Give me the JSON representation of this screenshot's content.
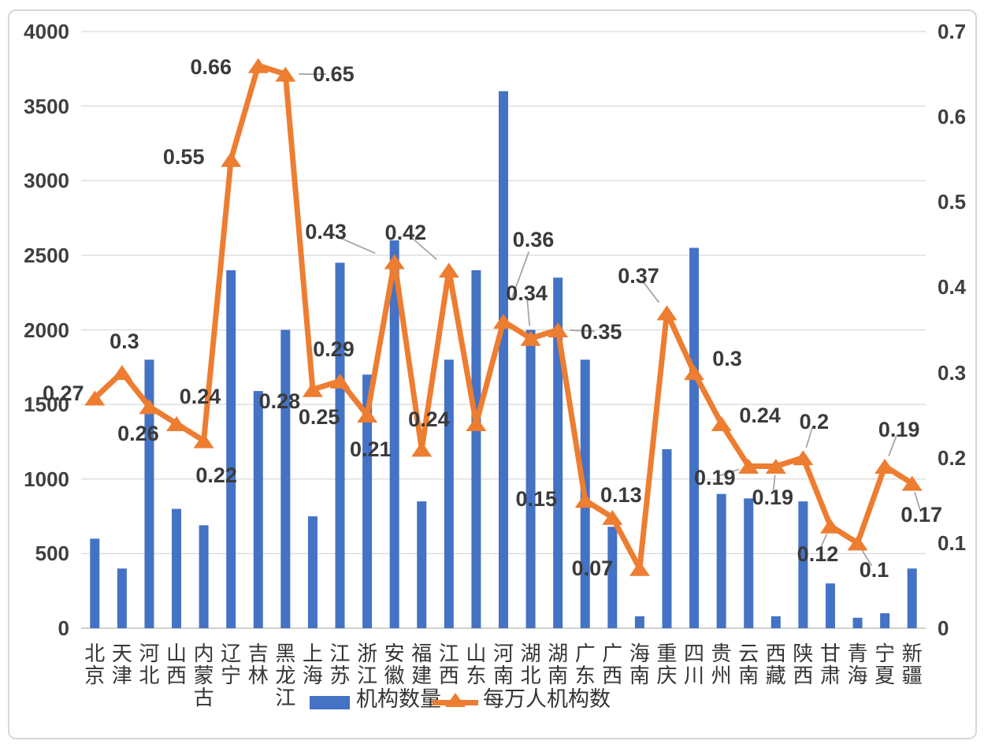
{
  "chart_data": {
    "type": "combo-bar-line",
    "title": "",
    "categories": [
      "北京",
      "天津",
      "河北",
      "山西",
      "内蒙古",
      "辽宁",
      "吉林",
      "黑龙江",
      "上海",
      "江苏",
      "浙江",
      "安徽",
      "福建",
      "江西",
      "山东",
      "河南",
      "湖北",
      "湖南",
      "广东",
      "广西",
      "海南",
      "重庆",
      "四川",
      "贵州",
      "云南",
      "西藏",
      "陕西",
      "甘肃",
      "青海",
      "宁夏",
      "新疆"
    ],
    "series": [
      {
        "name": "机构数量",
        "type": "bar",
        "axis": "left",
        "color": "#4472C4",
        "values": [
          600,
          400,
          1800,
          800,
          690,
          2400,
          1590,
          2000,
          750,
          2450,
          1700,
          2600,
          850,
          1800,
          2400,
          3600,
          2000,
          2350,
          1800,
          680,
          80,
          1200,
          2550,
          900,
          870,
          80,
          850,
          300,
          70,
          100,
          400
        ]
      },
      {
        "name": "每万人机构数",
        "type": "line",
        "axis": "right",
        "color": "#ED7D31",
        "marker": "triangle-up",
        "values": [
          0.27,
          0.3,
          0.26,
          0.24,
          0.22,
          0.55,
          0.66,
          0.65,
          0.28,
          0.29,
          0.25,
          0.43,
          0.21,
          0.42,
          0.24,
          0.36,
          0.34,
          0.35,
          0.15,
          0.13,
          0.07,
          0.37,
          0.3,
          0.24,
          0.19,
          0.19,
          0.2,
          0.12,
          0.1,
          0.19,
          0.17
        ],
        "labels": [
          "0.27",
          "0.3",
          "0.26",
          "0.24",
          "0.22",
          "0.55",
          "0.66",
          "0.65",
          "0.28",
          "0.29",
          "0.25",
          "0.43",
          "0.21",
          "0.42",
          "0.24",
          "0.36",
          "0.34",
          "0.35",
          "0.15",
          "0.13",
          "0.07",
          "0.37",
          "0.3",
          "0.24",
          "0.19",
          "0.19",
          "0.2",
          "0.12",
          "0.1",
          "0.19",
          "0.17"
        ],
        "label_offsets": [
          [
            -40,
            -6
          ],
          [
            3,
            -40
          ],
          [
            -14,
            34
          ],
          [
            30,
            -34
          ],
          [
            16,
            44
          ],
          [
            -60,
            -3
          ],
          [
            -60,
            2
          ],
          [
            61,
            0
          ],
          [
            -42,
            15
          ],
          [
            -8,
            -40
          ],
          [
            -61,
            2
          ],
          [
            -87,
            -38
          ],
          [
            -65,
            0
          ],
          [
            -55,
            -48
          ],
          [
            -60,
            -5
          ],
          [
            38,
            -104
          ],
          [
            -5,
            -57
          ],
          [
            55,
            2
          ],
          [
            -62,
            -2
          ],
          [
            11,
            -28
          ],
          [
            -60,
            0
          ],
          [
            -36,
            -47
          ],
          [
            42,
            -18
          ],
          [
            49,
            -10
          ],
          [
            -43,
            14
          ],
          [
            -4,
            39
          ],
          [
            14,
            -46
          ],
          [
            -16,
            36
          ],
          [
            21,
            34
          ],
          [
            18,
            -47
          ],
          [
            12,
            40
          ]
        ],
        "label_leaders": [
          false,
          false,
          false,
          false,
          false,
          false,
          false,
          true,
          false,
          false,
          false,
          true,
          false,
          true,
          false,
          true,
          true,
          true,
          false,
          false,
          false,
          true,
          false,
          false,
          true,
          true,
          true,
          true,
          true,
          true,
          true
        ]
      }
    ],
    "left_axis": {
      "min": 0,
      "max": 4000,
      "step": 500,
      "ticks": [
        "0",
        "500",
        "1000",
        "1500",
        "2000",
        "2500",
        "3000",
        "3500",
        "4000"
      ]
    },
    "right_axis": {
      "min": 0,
      "max": 0.7,
      "step": 0.1,
      "ticks": [
        "0",
        "0.1",
        "0.2",
        "0.3",
        "0.4",
        "0.5",
        "0.6",
        "0.7"
      ]
    },
    "grid": true,
    "legend_position": "bottom"
  },
  "colors": {
    "bar": "#4472C4",
    "line": "#ED7D31",
    "gridline": "#D9D9D9",
    "axis_line": "#BFBFBF",
    "leader_line": "#A6A6A6",
    "label_text": "#3A3A3A",
    "tick_text": "#3F3F3F",
    "frame_border": "#D4D9DE"
  }
}
